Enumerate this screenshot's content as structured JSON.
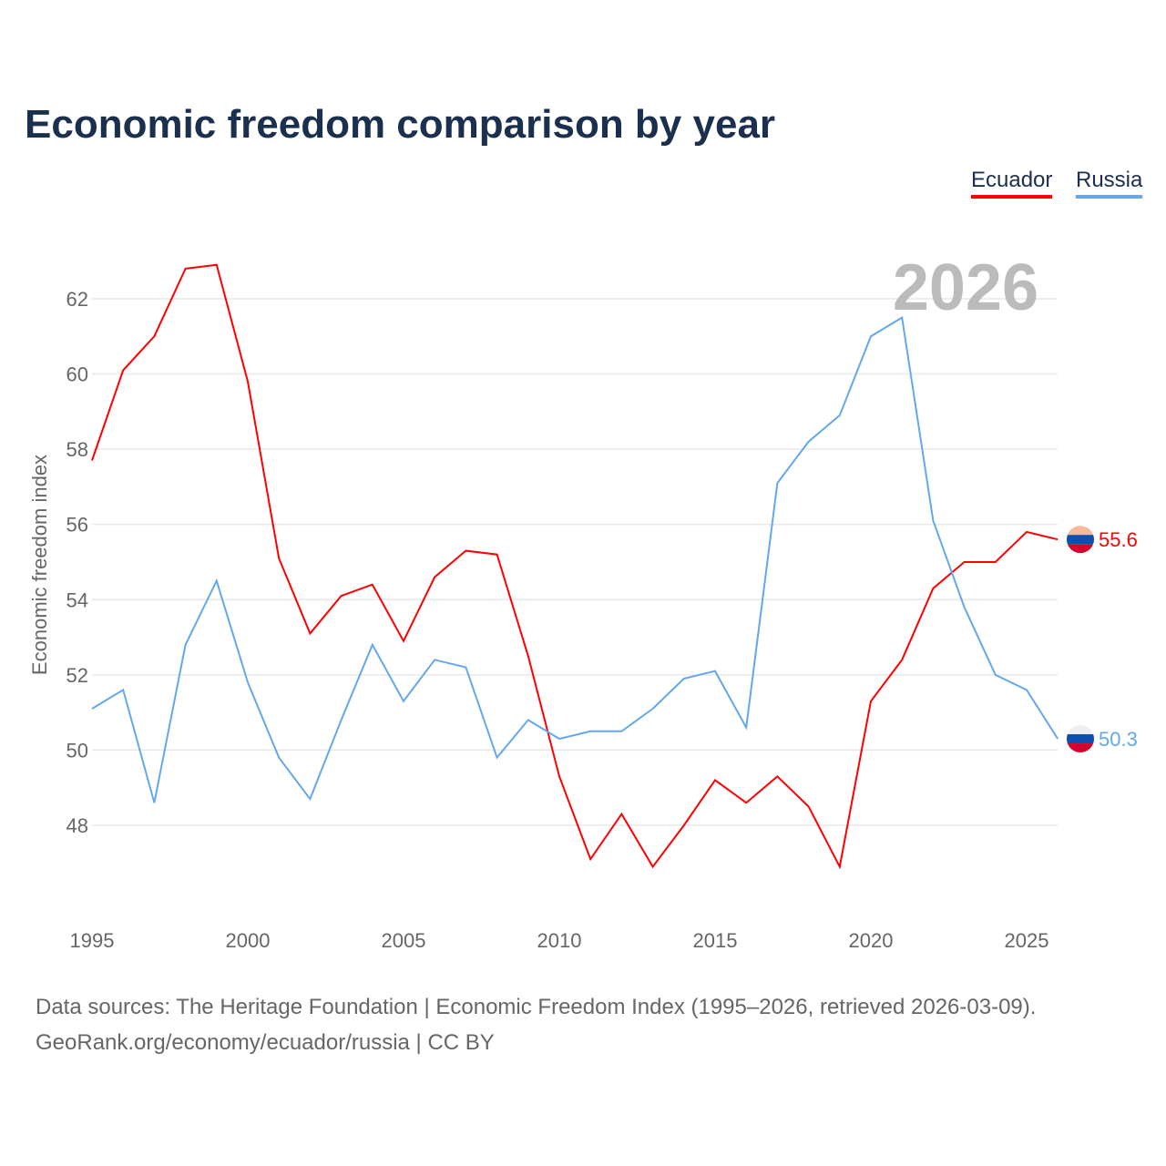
{
  "title": "Economic freedom comparison by year",
  "legend": [
    "Ecuador",
    "Russia"
  ],
  "footer": {
    "line1": "Data sources: The Heritage Foundation | Economic Freedom Index (1995–2026, retrieved 2026-03-09).",
    "line2": "GeoRank.org/economy/ecuador/russia | CC BY"
  },
  "chart_data": {
    "type": "line",
    "title": "Economic freedom comparison by year",
    "ylabel": "Economic freedom index",
    "xlabel": "",
    "year_label": "2026",
    "x": [
      1995,
      1996,
      1997,
      1998,
      1999,
      2000,
      2001,
      2002,
      2003,
      2004,
      2005,
      2006,
      2007,
      2008,
      2009,
      2010,
      2011,
      2012,
      2013,
      2014,
      2015,
      2016,
      2017,
      2018,
      2019,
      2020,
      2021,
      2022,
      2023,
      2024,
      2025,
      2026
    ],
    "xticks": [
      1995,
      2000,
      2005,
      2010,
      2015,
      2020,
      2025
    ],
    "yticks": [
      48,
      50,
      52,
      54,
      56,
      58,
      60,
      62
    ],
    "ylim": [
      45.5,
      63.5
    ],
    "xlim": [
      1995,
      2026
    ],
    "series": [
      {
        "name": "Ecuador",
        "color": "#ff0000",
        "end_label": "55.6",
        "values": [
          57.7,
          60.1,
          61.0,
          62.8,
          62.9,
          59.8,
          55.1,
          53.1,
          54.1,
          54.4,
          52.9,
          54.6,
          55.3,
          55.2,
          52.5,
          49.3,
          47.1,
          48.3,
          46.9,
          48.0,
          49.2,
          48.6,
          49.3,
          48.5,
          46.9,
          51.3,
          52.4,
          54.3,
          55.0,
          55.0,
          55.8,
          55.6
        ]
      },
      {
        "name": "Russia",
        "color": "#63a8ea",
        "end_label": "50.3",
        "values": [
          51.1,
          51.6,
          48.6,
          52.8,
          54.5,
          51.8,
          49.8,
          48.7,
          50.8,
          52.8,
          51.3,
          52.4,
          52.2,
          49.8,
          50.8,
          50.3,
          50.5,
          50.5,
          51.1,
          51.9,
          52.1,
          50.6,
          57.1,
          58.2,
          58.9,
          61.0,
          61.5,
          56.1,
          53.8,
          52.0,
          51.6,
          50.3
        ]
      }
    ]
  }
}
